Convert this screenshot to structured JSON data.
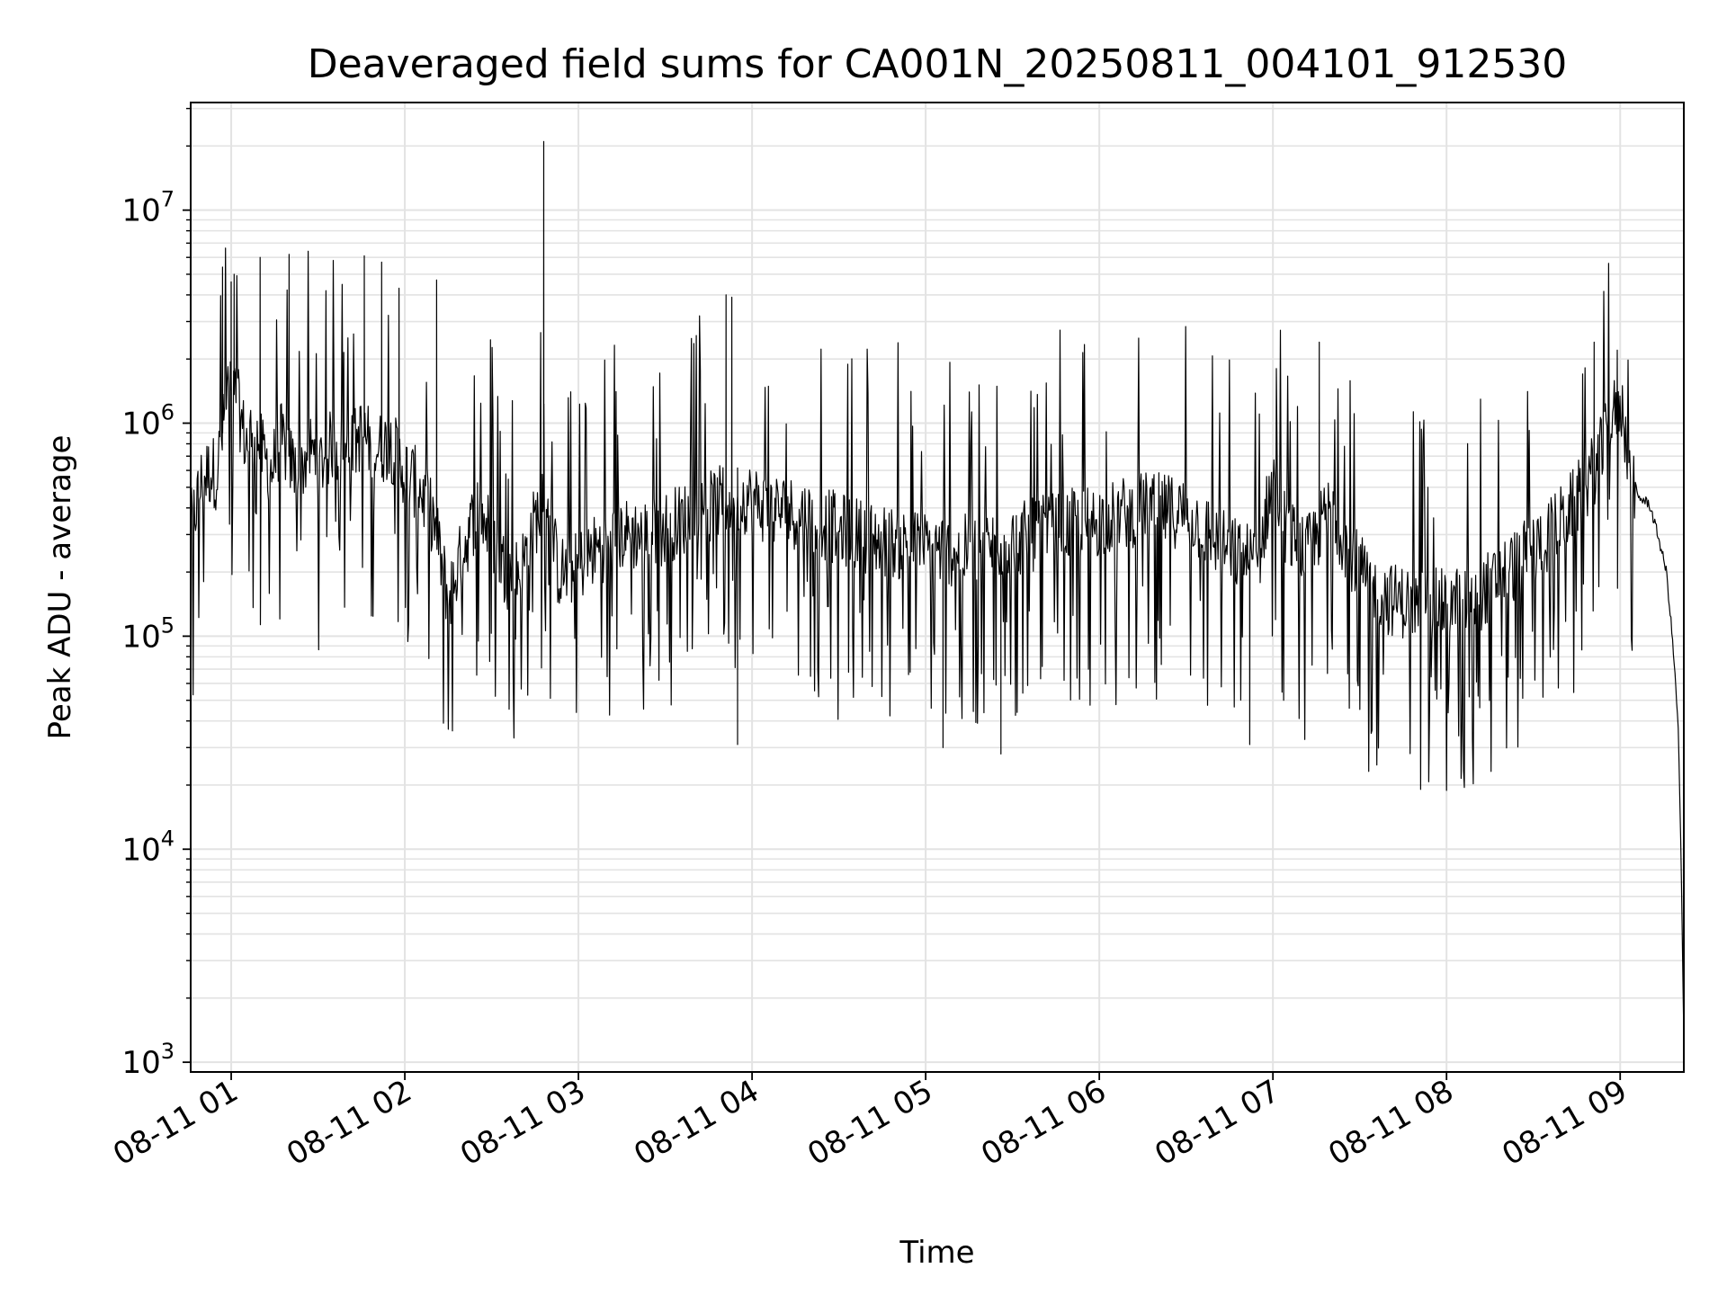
{
  "chart_data": {
    "type": "line",
    "title": "Deaveraged field sums for CA001N_20250811_004101_912530",
    "xlabel": "Time",
    "ylabel": "Peak ADU - average",
    "xlim": [
      "2025-08-11 00:46",
      "2025-08-11 09:22"
    ],
    "ylim": [
      900,
      32000000
    ],
    "yscale": "log",
    "grid": true,
    "legend": "none",
    "line_color": "#000000",
    "grid_color": "#e3e3e3",
    "x_ticks": [
      {
        "value": "2025-08-11 01:00",
        "label": "08-11 01"
      },
      {
        "value": "2025-08-11 02:00",
        "label": "08-11 02"
      },
      {
        "value": "2025-08-11 03:00",
        "label": "08-11 03"
      },
      {
        "value": "2025-08-11 04:00",
        "label": "08-11 04"
      },
      {
        "value": "2025-08-11 05:00",
        "label": "08-11 05"
      },
      {
        "value": "2025-08-11 06:00",
        "label": "08-11 06"
      },
      {
        "value": "2025-08-11 07:00",
        "label": "08-11 07"
      },
      {
        "value": "2025-08-11 08:00",
        "label": "08-11 08"
      },
      {
        "value": "2025-08-11 09:00",
        "label": "08-11 09"
      }
    ],
    "y_ticks": [
      {
        "value": 1000,
        "base": "10",
        "exp": "3"
      },
      {
        "value": 10000,
        "base": "10",
        "exp": "4"
      },
      {
        "value": 100000,
        "base": "10",
        "exp": "5"
      },
      {
        "value": 1000000,
        "base": "10",
        "exp": "6"
      },
      {
        "value": 10000000,
        "base": "10",
        "exp": "7"
      }
    ],
    "series": [
      {
        "x": [
          "2025-08-11 00:46",
          "2025-08-11 00:50",
          "2025-08-11 00:53",
          "2025-08-11 00:55",
          "2025-08-11 00:57",
          "2025-08-11 00:59",
          "2025-08-11 01:02",
          "2025-08-11 01:05",
          "2025-08-11 01:08",
          "2025-08-11 01:11",
          "2025-08-11 01:14",
          "2025-08-11 01:17",
          "2025-08-11 01:20",
          "2025-08-11 01:23",
          "2025-08-11 01:27",
          "2025-08-11 01:31",
          "2025-08-11 01:35",
          "2025-08-11 01:40",
          "2025-08-11 01:45",
          "2025-08-11 01:50",
          "2025-08-11 01:55",
          "2025-08-11 02:00",
          "2025-08-11 02:05",
          "2025-08-11 02:10",
          "2025-08-11 02:15",
          "2025-08-11 02:20",
          "2025-08-11 02:25",
          "2025-08-11 02:30",
          "2025-08-11 02:35",
          "2025-08-11 02:40",
          "2025-08-11 02:45",
          "2025-08-11 02:49",
          "2025-08-11 02:53",
          "2025-08-11 02:58",
          "2025-08-11 03:05",
          "2025-08-11 03:15",
          "2025-08-11 03:25",
          "2025-08-11 03:35",
          "2025-08-11 03:45",
          "2025-08-11 03:53",
          "2025-08-11 03:58",
          "2025-08-11 04:05",
          "2025-08-11 04:15",
          "2025-08-11 04:30",
          "2025-08-11 04:45",
          "2025-08-11 05:00",
          "2025-08-11 05:15",
          "2025-08-11 05:30",
          "2025-08-11 05:45",
          "2025-08-11 06:00",
          "2025-08-11 06:15",
          "2025-08-11 06:30",
          "2025-08-11 06:45",
          "2025-08-11 06:55",
          "2025-08-11 07:00",
          "2025-08-11 07:05",
          "2025-08-11 07:12",
          "2025-08-11 07:20",
          "2025-08-11 07:30",
          "2025-08-11 07:40",
          "2025-08-11 07:50",
          "2025-08-11 08:00",
          "2025-08-11 08:10",
          "2025-08-11 08:20",
          "2025-08-11 08:30",
          "2025-08-11 08:40",
          "2025-08-11 08:48",
          "2025-08-11 08:53",
          "2025-08-11 08:58",
          "2025-08-11 09:00",
          "2025-08-11 09:03",
          "2025-08-11 09:06",
          "2025-08-11 09:10",
          "2025-08-11 09:13",
          "2025-08-11 09:16",
          "2025-08-11 09:18",
          "2025-08-11 09:20",
          "2025-08-11 09:21",
          "2025-08-11 09:22"
        ],
        "values": [
          320000,
          550000,
          600000,
          580000,
          900000,
          1500000,
          1300000,
          800000,
          950000,
          700000,
          600000,
          850000,
          700000,
          550000,
          750000,
          650000,
          800000,
          700000,
          900000,
          750000,
          800000,
          600000,
          500000,
          350000,
          150000,
          250000,
          400000,
          300000,
          200000,
          200000,
          350000,
          450000,
          200000,
          200000,
          250000,
          300000,
          300000,
          350000,
          400000,
          450000,
          450000,
          400000,
          380000,
          320000,
          280000,
          260000,
          250000,
          280000,
          320000,
          350000,
          400000,
          380000,
          250000,
          220000,
          600000,
          300000,
          250000,
          400000,
          200000,
          150000,
          140000,
          140000,
          150000,
          200000,
          250000,
          350000,
          500000,
          700000,
          1100000,
          1300000,
          700000,
          450000,
          420000,
          300000,
          200000,
          100000,
          40000,
          10000,
          1300
        ]
      }
    ],
    "spikes": [
      {
        "x": "2025-08-11 00:57",
        "y": 5400000
      },
      {
        "x": "2025-08-11 01:00",
        "y": 4600000
      },
      {
        "x": "2025-08-11 01:01",
        "y": 5000000
      },
      {
        "x": "2025-08-11 01:10",
        "y": 6000000
      },
      {
        "x": "2025-08-11 01:20",
        "y": 6200000
      },
      {
        "x": "2025-08-11 01:46",
        "y": 6100000
      },
      {
        "x": "2025-08-11 01:52",
        "y": 5700000
      },
      {
        "x": "2025-08-11 01:58",
        "y": 4300000
      },
      {
        "x": "2025-08-11 02:11",
        "y": 4700000
      },
      {
        "x": "2025-08-11 02:48",
        "y": 21000000
      },
      {
        "x": "2025-08-11 03:51",
        "y": 4000000
      },
      {
        "x": "2025-08-11 03:53",
        "y": 3900000
      },
      {
        "x": "2025-08-11 07:16",
        "y": 2400000
      },
      {
        "x": "2025-08-11 08:51",
        "y": 2400000
      },
      {
        "x": "2025-08-11 08:59",
        "y": 2200000
      },
      {
        "x": "2025-08-11 05:26",
        "y": 28000
      },
      {
        "x": "2025-08-11 05:06",
        "y": 30000
      },
      {
        "x": "2025-08-11 03:55",
        "y": 31000
      },
      {
        "x": "2025-08-11 06:52",
        "y": 31000
      }
    ]
  }
}
